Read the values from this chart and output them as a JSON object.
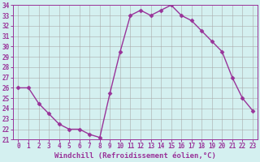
{
  "hours": [
    0,
    1,
    2,
    3,
    4,
    5,
    6,
    7,
    8,
    9,
    10,
    11,
    12,
    13,
    14,
    15,
    16,
    17,
    18,
    19,
    20,
    21,
    22,
    23
  ],
  "temps": [
    26.0,
    26.0,
    24.5,
    23.5,
    22.5,
    22.0,
    22.0,
    21.5,
    21.2,
    25.5,
    29.5,
    33.0,
    33.5,
    33.0,
    33.5,
    34.0,
    33.0,
    32.5,
    31.5,
    30.5,
    29.5,
    27.0,
    25.0,
    23.8
  ],
  "xlim": [
    -0.5,
    23.5
  ],
  "ylim": [
    21,
    34
  ],
  "yticks": [
    21,
    22,
    23,
    24,
    25,
    26,
    27,
    28,
    29,
    30,
    31,
    32,
    33,
    34
  ],
  "xticks": [
    0,
    1,
    2,
    3,
    4,
    5,
    6,
    7,
    8,
    9,
    10,
    11,
    12,
    13,
    14,
    15,
    16,
    17,
    18,
    19,
    20,
    21,
    22,
    23
  ],
  "line_color": "#993399",
  "marker": "D",
  "marker_size": 2.5,
  "bg_color": "#d4f0f0",
  "grid_color": "#aaaaaa",
  "xlabel": "Windchill (Refroidissement éolien,°C)",
  "xlabel_fontsize": 6.5,
  "tick_fontsize": 5.5,
  "line_width": 1.0,
  "figsize": [
    3.2,
    2.0
  ],
  "dpi": 100
}
